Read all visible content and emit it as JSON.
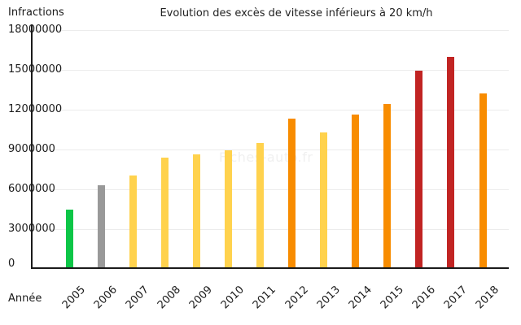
{
  "page": {
    "background": "#ffffff"
  },
  "chart": {
    "title": "Evolution des excès de vitesse inférieurs à 20 km/h",
    "y_axis_label": "Infractions",
    "x_axis_label": "Année",
    "watermark": "Fiches-auto.fr"
  },
  "chart_data": {
    "type": "bar",
    "title": "Evolution des excès de vitesse inférieurs à 20 km/h",
    "xlabel": "Année",
    "ylabel": "Infractions",
    "ylim": [
      0,
      18000000
    ],
    "yticks": [
      0,
      3000000,
      6000000,
      9000000,
      12000000,
      15000000,
      18000000
    ],
    "grid": true,
    "legend": false,
    "categories": [
      "2005",
      "2006",
      "2007",
      "2008",
      "2009",
      "2010",
      "2011",
      "2012",
      "2013",
      "2014",
      "2015",
      "2016",
      "2017",
      "2018"
    ],
    "values": [
      4500000,
      6300000,
      7050000,
      8400000,
      8650000,
      8950000,
      9500000,
      11300000,
      10300000,
      11650000,
      12400000,
      14950000,
      15950000,
      13200000
    ],
    "bar_colors": [
      "#0cc647",
      "#999999",
      "#ffd24d",
      "#ffd24d",
      "#ffd24d",
      "#ffd24d",
      "#ffd24d",
      "#f88c00",
      "#ffd24d",
      "#f88c00",
      "#f88c00",
      "#c12423",
      "#c12423",
      "#f88c00"
    ],
    "palette": {
      "green": "#0cc647",
      "gray": "#999999",
      "yellow": "#ffd24d",
      "orange": "#f88c00",
      "dark_red": "#c12423",
      "gridline": "#ececec",
      "axis": "#1a1a1a",
      "watermark_text": "#f0f0f0"
    }
  }
}
